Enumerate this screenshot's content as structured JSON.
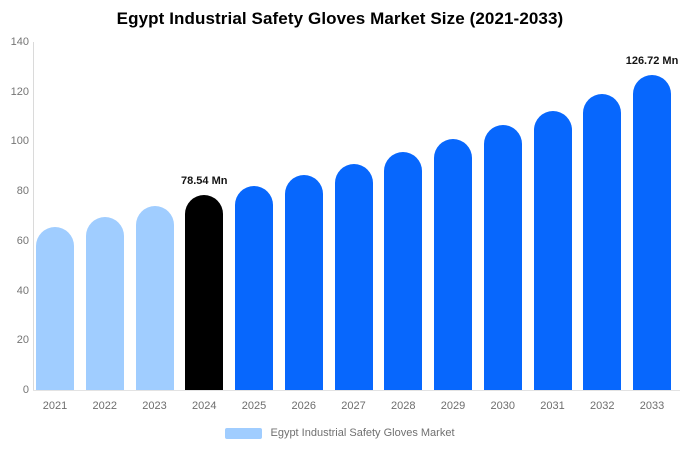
{
  "title": "Egypt Industrial Safety Gloves Market Size (2021-2033)",
  "legend": {
    "label": "Egypt Industrial Safety Gloves Market",
    "swatch_color": "#A0CDFF"
  },
  "colors": {
    "past_bar": "#A0CDFF",
    "current_bar": "#000000",
    "forecast_bar": "#0767FD",
    "axis_text": "#757575",
    "axis_line": "#DADADA",
    "annotation_text": "#141414"
  },
  "chart_data": {
    "type": "bar",
    "title": "Egypt Industrial Safety Gloves Market Size (2021-2033)",
    "unit": "Mn",
    "categories": [
      "2021",
      "2022",
      "2023",
      "2024",
      "2025",
      "2026",
      "2027",
      "2028",
      "2029",
      "2030",
      "2031",
      "2032",
      "2033"
    ],
    "values": [
      65.6,
      69.7,
      74.0,
      78.54,
      82.1,
      86.3,
      91.0,
      95.9,
      101.1,
      106.6,
      112.4,
      119.1,
      126.72
    ],
    "series": [
      {
        "name": "Egypt Industrial Safety Gloves Market",
        "values": [
          65.6,
          69.7,
          74.0,
          78.54,
          82.1,
          86.3,
          91.0,
          95.9,
          101.1,
          106.6,
          112.4,
          119.1,
          126.72
        ]
      }
    ],
    "bar_segments": [
      {
        "categories": [
          "2021",
          "2022",
          "2023"
        ],
        "role": "historical",
        "color": "#A0CDFF"
      },
      {
        "categories": [
          "2024"
        ],
        "role": "base-year",
        "color": "#000000"
      },
      {
        "categories": [
          "2025",
          "2026",
          "2027",
          "2028",
          "2029",
          "2030",
          "2031",
          "2032",
          "2033"
        ],
        "role": "forecast",
        "color": "#0767FD"
      }
    ],
    "annotations": [
      {
        "category": "2024",
        "text": "78.54 Mn",
        "value": 78.54
      },
      {
        "category": "2033",
        "text": "126.72 Mn",
        "value": 126.72
      }
    ],
    "xlabel": "",
    "ylabel": "",
    "ylim": [
      0,
      140
    ],
    "yticks": [
      0,
      20,
      40,
      60,
      80,
      100,
      120,
      140
    ],
    "grid": false,
    "legend_position": "bottom-center"
  }
}
